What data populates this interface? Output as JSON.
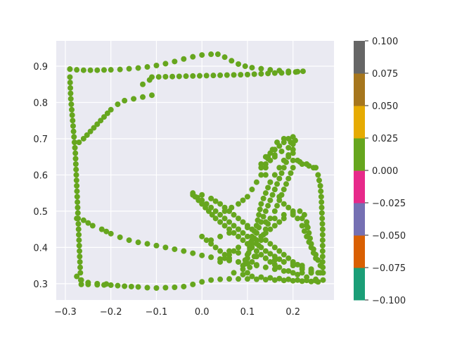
{
  "chart_data": {
    "type": "scatter",
    "title": "",
    "xlabel": "",
    "ylabel": "",
    "xlim": [
      -0.32,
      0.29
    ],
    "ylim": [
      0.255,
      0.97
    ],
    "xticks": [
      -0.3,
      -0.2,
      -0.1,
      0.0,
      0.1,
      0.2
    ],
    "xtick_labels": [
      "−0.3",
      "−0.2",
      "−0.1",
      "0.0",
      "0.1",
      "0.2"
    ],
    "yticks": [
      0.3,
      0.4,
      0.5,
      0.6,
      0.7,
      0.8,
      0.9
    ],
    "ytick_labels": [
      "0.3",
      "0.4",
      "0.5",
      "0.6",
      "0.7",
      "0.8",
      "0.9"
    ],
    "grid": true,
    "background": "#eaeaf2",
    "point_color": "#66a61e",
    "colorbar": {
      "range": [
        -0.1,
        0.1
      ],
      "ticks": [
        -0.1,
        -0.075,
        -0.05,
        -0.025,
        0.0,
        0.025,
        0.05,
        0.075,
        0.1
      ],
      "tick_labels": [
        "−0.100",
        "−0.075",
        "−0.050",
        "−0.025",
        "0.000",
        "0.025",
        "0.050",
        "0.075",
        "0.100"
      ],
      "colors": [
        "#1b9e77",
        "#d95f02",
        "#7570b3",
        "#e7298a",
        "#66a61e",
        "#e6ab02",
        "#a6761d",
        "#666666"
      ]
    },
    "paths": [
      [
        [
          -0.29,
          0.892
        ],
        [
          -0.275,
          0.89
        ],
        [
          -0.26,
          0.889
        ],
        [
          -0.245,
          0.889
        ],
        [
          -0.23,
          0.889
        ],
        [
          -0.2,
          0.89
        ],
        [
          -0.18,
          0.891
        ],
        [
          -0.16,
          0.893
        ],
        [
          -0.14,
          0.895
        ],
        [
          -0.12,
          0.898
        ],
        [
          -0.1,
          0.902
        ],
        [
          -0.08,
          0.907
        ],
        [
          -0.06,
          0.913
        ],
        [
          -0.04,
          0.92
        ],
        [
          -0.02,
          0.926
        ],
        [
          0.0,
          0.931
        ],
        [
          0.02,
          0.933
        ],
        [
          0.035,
          0.933
        ],
        [
          0.05,
          0.925
        ],
        [
          0.065,
          0.915
        ],
        [
          0.08,
          0.906
        ],
        [
          0.095,
          0.9
        ],
        [
          0.11,
          0.896
        ],
        [
          0.13,
          0.893
        ],
        [
          0.15,
          0.89
        ],
        [
          0.17,
          0.888
        ],
        [
          0.19,
          0.886
        ],
        [
          0.21,
          0.885
        ]
      ],
      [
        [
          0.222,
          0.886
        ],
        [
          0.19,
          0.882
        ],
        [
          0.16,
          0.881
        ],
        [
          0.13,
          0.879
        ],
        [
          0.1,
          0.877
        ],
        [
          0.07,
          0.876
        ],
        [
          0.04,
          0.875
        ],
        [
          0.01,
          0.874
        ],
        [
          -0.02,
          0.873
        ],
        [
          -0.05,
          0.872
        ],
        [
          -0.08,
          0.871
        ],
        [
          -0.11,
          0.87
        ],
        [
          -0.115,
          0.862
        ],
        [
          -0.13,
          0.85
        ]
      ],
      [
        [
          -0.29,
          0.892
        ],
        [
          -0.29,
          0.87
        ],
        [
          -0.289,
          0.84
        ],
        [
          -0.288,
          0.81
        ],
        [
          -0.286,
          0.78
        ],
        [
          -0.284,
          0.75
        ],
        [
          -0.282,
          0.72
        ],
        [
          -0.28,
          0.69
        ],
        [
          -0.278,
          0.66
        ],
        [
          -0.277,
          0.63
        ],
        [
          -0.276,
          0.6
        ],
        [
          -0.275,
          0.57
        ],
        [
          -0.274,
          0.54
        ],
        [
          -0.273,
          0.51
        ],
        [
          -0.272,
          0.48
        ],
        [
          -0.271,
          0.45
        ],
        [
          -0.27,
          0.42
        ],
        [
          -0.269,
          0.39
        ],
        [
          -0.268,
          0.36
        ],
        [
          -0.267,
          0.33
        ],
        [
          -0.266,
          0.31
        ],
        [
          -0.265,
          0.298
        ],
        [
          -0.25,
          0.298
        ],
        [
          -0.23,
          0.297
        ],
        [
          -0.2,
          0.296
        ],
        [
          -0.17,
          0.293
        ],
        [
          -0.14,
          0.291
        ],
        [
          -0.12,
          0.289
        ],
        [
          -0.1,
          0.288
        ],
        [
          -0.08,
          0.289
        ],
        [
          -0.06,
          0.29
        ],
        [
          -0.04,
          0.292
        ],
        [
          -0.02,
          0.298
        ],
        [
          0.0,
          0.305
        ],
        [
          0.02,
          0.31
        ],
        [
          0.04,
          0.312
        ],
        [
          0.06,
          0.313
        ],
        [
          0.08,
          0.313
        ],
        [
          0.1,
          0.313
        ],
        [
          0.12,
          0.312
        ],
        [
          0.14,
          0.311
        ],
        [
          0.16,
          0.31
        ],
        [
          0.18,
          0.309
        ],
        [
          0.2,
          0.308
        ],
        [
          0.22,
          0.307
        ],
        [
          0.24,
          0.306
        ],
        [
          0.255,
          0.305
        ]
      ],
      [
        [
          -0.27,
          0.69
        ],
        [
          -0.26,
          0.7
        ],
        [
          -0.245,
          0.72
        ],
        [
          -0.23,
          0.74
        ],
        [
          -0.215,
          0.76
        ],
        [
          -0.2,
          0.78
        ],
        [
          -0.185,
          0.795
        ],
        [
          -0.17,
          0.805
        ],
        [
          -0.15,
          0.81
        ],
        [
          -0.13,
          0.815
        ],
        [
          -0.11,
          0.82
        ]
      ],
      [
        [
          -0.275,
          0.48
        ],
        [
          -0.26,
          0.475
        ],
        [
          -0.24,
          0.46
        ],
        [
          -0.22,
          0.45
        ],
        [
          -0.2,
          0.438
        ],
        [
          -0.18,
          0.428
        ],
        [
          -0.16,
          0.42
        ],
        [
          -0.14,
          0.414
        ],
        [
          -0.12,
          0.41
        ],
        [
          -0.1,
          0.405
        ],
        [
          -0.08,
          0.4
        ],
        [
          -0.06,
          0.395
        ],
        [
          -0.04,
          0.39
        ],
        [
          -0.02,
          0.384
        ],
        [
          0.0,
          0.378
        ],
        [
          0.02,
          0.373
        ],
        [
          0.04,
          0.368
        ],
        [
          0.06,
          0.364
        ],
        [
          0.08,
          0.36
        ],
        [
          0.1,
          0.356
        ],
        [
          0.12,
          0.352
        ]
      ],
      [
        [
          -0.275,
          0.32
        ],
        [
          -0.265,
          0.31
        ],
        [
          -0.25,
          0.303
        ],
        [
          -0.23,
          0.3
        ],
        [
          -0.21,
          0.299
        ]
      ],
      [
        [
          0.2,
          0.64
        ],
        [
          0.215,
          0.636
        ],
        [
          0.23,
          0.63
        ],
        [
          0.245,
          0.62
        ],
        [
          0.255,
          0.6
        ],
        [
          0.26,
          0.57
        ],
        [
          0.262,
          0.54
        ],
        [
          0.263,
          0.51
        ],
        [
          0.264,
          0.48
        ],
        [
          0.265,
          0.45
        ],
        [
          0.265,
          0.42
        ],
        [
          0.265,
          0.39
        ],
        [
          0.265,
          0.36
        ],
        [
          0.266,
          0.33
        ],
        [
          0.266,
          0.31
        ]
      ],
      [
        [
          -0.02,
          0.55
        ],
        [
          0.0,
          0.545
        ],
        [
          0.02,
          0.535
        ],
        [
          0.04,
          0.52
        ],
        [
          0.06,
          0.5
        ],
        [
          0.08,
          0.48
        ],
        [
          0.1,
          0.46
        ],
        [
          0.12,
          0.44
        ],
        [
          0.14,
          0.42
        ],
        [
          0.16,
          0.4
        ],
        [
          0.18,
          0.38
        ],
        [
          0.2,
          0.36
        ],
        [
          0.22,
          0.345
        ],
        [
          0.24,
          0.335
        ],
        [
          0.26,
          0.33
        ]
      ],
      [
        [
          -0.02,
          0.545
        ],
        [
          0.0,
          0.53
        ],
        [
          0.02,
          0.51
        ],
        [
          0.04,
          0.49
        ],
        [
          0.06,
          0.47
        ],
        [
          0.08,
          0.45
        ],
        [
          0.1,
          0.43
        ],
        [
          0.12,
          0.41
        ],
        [
          0.14,
          0.39
        ],
        [
          0.16,
          0.375
        ],
        [
          0.18,
          0.36
        ],
        [
          0.2,
          0.35
        ],
        [
          0.22,
          0.34
        ],
        [
          0.24,
          0.33
        ]
      ],
      [
        [
          -0.015,
          0.54
        ],
        [
          0.0,
          0.52
        ],
        [
          0.015,
          0.5
        ],
        [
          0.03,
          0.48
        ],
        [
          0.05,
          0.46
        ],
        [
          0.07,
          0.44
        ],
        [
          0.09,
          0.42
        ],
        [
          0.11,
          0.4
        ],
        [
          0.13,
          0.38
        ],
        [
          0.15,
          0.36
        ],
        [
          0.17,
          0.345
        ],
        [
          0.19,
          0.335
        ],
        [
          0.21,
          0.325
        ],
        [
          0.23,
          0.318
        ],
        [
          0.25,
          0.312
        ]
      ],
      [
        [
          0.02,
          0.42
        ],
        [
          0.04,
          0.43
        ],
        [
          0.06,
          0.44
        ],
        [
          0.08,
          0.45
        ],
        [
          0.1,
          0.455
        ],
        [
          0.12,
          0.46
        ],
        [
          0.14,
          0.47
        ],
        [
          0.16,
          0.48
        ],
        [
          0.18,
          0.49
        ],
        [
          0.2,
          0.495
        ],
        [
          0.215,
          0.5
        ],
        [
          0.225,
          0.49
        ],
        [
          0.23,
          0.47
        ],
        [
          0.235,
          0.44
        ],
        [
          0.24,
          0.41
        ],
        [
          0.25,
          0.38
        ],
        [
          0.26,
          0.35
        ]
      ],
      [
        [
          0.0,
          0.43
        ],
        [
          0.02,
          0.41
        ],
        [
          0.04,
          0.39
        ],
        [
          0.06,
          0.37
        ],
        [
          0.08,
          0.36
        ],
        [
          0.1,
          0.355
        ],
        [
          0.12,
          0.35
        ],
        [
          0.14,
          0.345
        ],
        [
          0.16,
          0.34
        ],
        [
          0.18,
          0.335
        ],
        [
          0.2,
          0.33
        ],
        [
          0.22,
          0.33
        ],
        [
          0.24,
          0.33
        ]
      ],
      [
        [
          0.09,
          0.35
        ],
        [
          0.1,
          0.38
        ],
        [
          0.11,
          0.41
        ],
        [
          0.12,
          0.44
        ],
        [
          0.13,
          0.47
        ],
        [
          0.14,
          0.5
        ],
        [
          0.15,
          0.53
        ],
        [
          0.16,
          0.56
        ],
        [
          0.17,
          0.59
        ],
        [
          0.18,
          0.62
        ],
        [
          0.19,
          0.65
        ],
        [
          0.2,
          0.67
        ],
        [
          0.195,
          0.69
        ],
        [
          0.18,
          0.7
        ],
        [
          0.165,
          0.69
        ],
        [
          0.155,
          0.67
        ],
        [
          0.145,
          0.65
        ],
        [
          0.14,
          0.63
        ]
      ],
      [
        [
          0.09,
          0.34
        ],
        [
          0.1,
          0.37
        ],
        [
          0.105,
          0.4
        ],
        [
          0.11,
          0.43
        ],
        [
          0.12,
          0.46
        ],
        [
          0.125,
          0.49
        ],
        [
          0.13,
          0.52
        ],
        [
          0.14,
          0.55
        ],
        [
          0.15,
          0.58
        ],
        [
          0.16,
          0.6
        ],
        [
          0.17,
          0.62
        ],
        [
          0.18,
          0.64
        ],
        [
          0.19,
          0.655
        ],
        [
          0.2,
          0.66
        ]
      ],
      [
        [
          0.1,
          0.33
        ],
        [
          0.11,
          0.36
        ],
        [
          0.12,
          0.39
        ],
        [
          0.13,
          0.42
        ],
        [
          0.14,
          0.45
        ],
        [
          0.15,
          0.48
        ],
        [
          0.16,
          0.5
        ],
        [
          0.17,
          0.53
        ],
        [
          0.18,
          0.56
        ],
        [
          0.19,
          0.59
        ],
        [
          0.2,
          0.62
        ],
        [
          0.21,
          0.64
        ]
      ],
      [
        [
          0.13,
          0.62
        ],
        [
          0.14,
          0.6
        ],
        [
          0.15,
          0.58
        ],
        [
          0.16,
          0.56
        ],
        [
          0.17,
          0.54
        ],
        [
          0.18,
          0.52
        ],
        [
          0.19,
          0.51
        ],
        [
          0.2,
          0.5
        ],
        [
          0.21,
          0.48
        ],
        [
          0.22,
          0.46
        ],
        [
          0.23,
          0.43
        ],
        [
          0.24,
          0.4
        ],
        [
          0.25,
          0.37
        ]
      ],
      [
        [
          0.13,
          0.63
        ],
        [
          0.145,
          0.645
        ],
        [
          0.16,
          0.655
        ],
        [
          0.175,
          0.665
        ],
        [
          0.19,
          0.675
        ],
        [
          0.2,
          0.685
        ],
        [
          0.205,
          0.695
        ],
        [
          0.2,
          0.705
        ],
        [
          0.19,
          0.7
        ],
        [
          0.18,
          0.69
        ],
        [
          0.17,
          0.68
        ],
        [
          0.16,
          0.67
        ],
        [
          0.15,
          0.66
        ],
        [
          0.14,
          0.65
        ]
      ],
      [
        [
          0.05,
          0.5
        ],
        [
          0.065,
          0.51
        ],
        [
          0.08,
          0.52
        ],
        [
          0.09,
          0.53
        ],
        [
          0.1,
          0.54
        ],
        [
          0.11,
          0.56
        ],
        [
          0.12,
          0.58
        ],
        [
          0.13,
          0.6
        ],
        [
          0.14,
          0.62
        ],
        [
          0.15,
          0.64
        ],
        [
          0.16,
          0.65
        ]
      ],
      [
        [
          0.04,
          0.36
        ],
        [
          0.06,
          0.38
        ],
        [
          0.08,
          0.4
        ],
        [
          0.1,
          0.41
        ],
        [
          0.12,
          0.42
        ],
        [
          0.14,
          0.44
        ],
        [
          0.16,
          0.46
        ],
        [
          0.18,
          0.48
        ],
        [
          0.2,
          0.49
        ],
        [
          0.22,
          0.48
        ],
        [
          0.23,
          0.46
        ]
      ],
      [
        [
          0.22,
          0.63
        ],
        [
          0.235,
          0.625
        ],
        [
          0.25,
          0.62
        ]
      ],
      [
        [
          0.06,
          0.39
        ],
        [
          0.08,
          0.385
        ],
        [
          0.1,
          0.38
        ],
        [
          0.12,
          0.375
        ],
        [
          0.14,
          0.37
        ],
        [
          0.16,
          0.365
        ],
        [
          0.18,
          0.36
        ],
        [
          0.2,
          0.355
        ],
        [
          0.22,
          0.35
        ],
        [
          0.24,
          0.34
        ],
        [
          0.255,
          0.33
        ]
      ],
      [
        [
          0.07,
          0.33
        ],
        [
          0.09,
          0.325
        ],
        [
          0.11,
          0.32
        ],
        [
          0.13,
          0.318
        ],
        [
          0.15,
          0.316
        ],
        [
          0.17,
          0.314
        ],
        [
          0.19,
          0.312
        ],
        [
          0.21,
          0.31
        ],
        [
          0.23,
          0.309
        ],
        [
          0.25,
          0.308
        ]
      ]
    ]
  }
}
